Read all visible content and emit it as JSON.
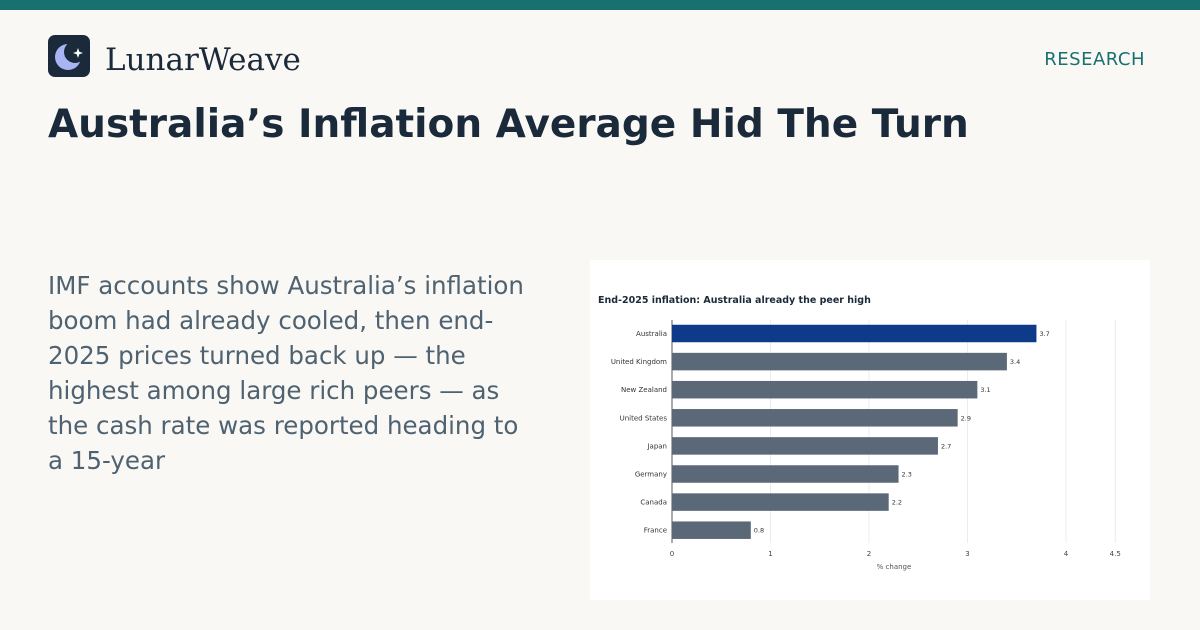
{
  "brand": {
    "name": "LunarWeave",
    "icon": "crescent-moon-icon",
    "accent_color": "#19716f"
  },
  "header": {
    "section_label": "RESEARCH"
  },
  "article": {
    "headline": "Australia’s Inflation Average Hid The Turn",
    "dek": "IMF accounts show Australia’s inflation boom had already cooled, then end-2025 prices turned back up — the highest among large rich peers — as the cash rate was reported heading to a 15-year"
  },
  "chart_data": {
    "type": "bar",
    "orientation": "horizontal",
    "title": "End-2025 inflation: Australia already the peer high",
    "xlabel": "% change",
    "ylabel": "",
    "categories": [
      "Australia",
      "United Kingdom",
      "New Zealand",
      "United States",
      "Japan",
      "Germany",
      "Canada",
      "France"
    ],
    "values": [
      3.7,
      3.4,
      3.1,
      2.9,
      2.7,
      2.3,
      2.2,
      0.8
    ],
    "value_labels": [
      "3.7",
      "3.4",
      "3.1",
      "2.9",
      "2.7",
      "2.3",
      "2.2",
      "0.8"
    ],
    "xlim": [
      0,
      4.5
    ],
    "xticks": [
      0,
      1,
      2,
      3,
      4,
      4.5
    ],
    "xtick_labels": [
      "0",
      "1",
      "2",
      "3",
      "4",
      "4.5"
    ],
    "grid": true,
    "highlight_color": "#0e3a8a",
    "bar_color": "#5a6878"
  }
}
